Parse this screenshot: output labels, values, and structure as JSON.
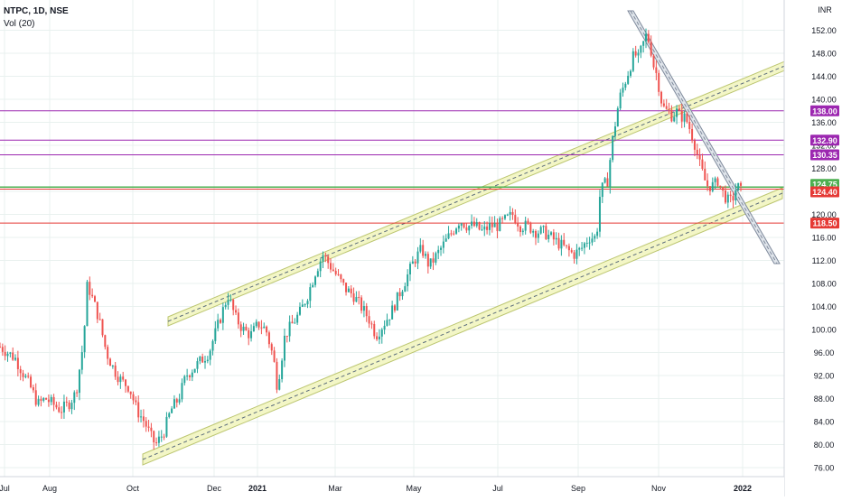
{
  "header": {
    "symbol": "NTPC, 1D, NSE",
    "indicator": "Vol (20)",
    "currency": "INR"
  },
  "chart_data": {
    "type": "candlestick",
    "x_axis": {
      "tick_labels": [
        "Jul",
        "Aug",
        "Oct",
        "Dec",
        "2021",
        "Mar",
        "May",
        "Jul",
        "Sep",
        "Nov",
        "2022"
      ]
    },
    "y_axis": {
      "position": "right",
      "ylim": [
        75,
        155
      ],
      "ticks": [
        76,
        80,
        84,
        88,
        92,
        96,
        100,
        104,
        108,
        112,
        116,
        120,
        124,
        128,
        132,
        136,
        140,
        144,
        148,
        152
      ],
      "tick_labels": [
        "76.00",
        "80.00",
        "84.00",
        "88.00",
        "92.00",
        "96.00",
        "100.00",
        "104.00",
        "108.00",
        "112.00",
        "116.00",
        "120.00",
        "124.00",
        "128.00",
        "132.00",
        "136.00",
        "140.00",
        "144.00",
        "148.00",
        "152.00"
      ]
    },
    "grid": true,
    "colors": {
      "up": "#26a69a",
      "down": "#ef5350",
      "grid": "#e9f1ef",
      "background": "#e8f5f1",
      "channel_fill": "#f3f6c3",
      "channel_line": "#b9c36a",
      "trendline": "#7f8a9c"
    },
    "horizontal_levels": [
      {
        "value": 138.0,
        "label": "138.00",
        "color": "#9c27b0"
      },
      {
        "value": 132.9,
        "label": "132.90",
        "color": "#9c27b0"
      },
      {
        "value": 130.35,
        "label": "130.35",
        "color": "#9c27b0"
      },
      {
        "value": 124.75,
        "label": "124.75",
        "color": "#4caf50"
      },
      {
        "value": 124.4,
        "label": "124.40",
        "color": "#e53935"
      },
      {
        "value": 118.5,
        "label": "118.50",
        "color": "#e53935"
      }
    ],
    "price_path": [
      [
        0,
        97
      ],
      [
        4,
        95
      ],
      [
        8,
        90
      ],
      [
        10,
        87
      ],
      [
        12,
        88
      ],
      [
        14,
        87
      ],
      [
        16,
        86
      ],
      [
        18,
        87
      ],
      [
        20,
        89
      ],
      [
        22,
        98
      ],
      [
        23,
        108
      ],
      [
        24,
        106
      ],
      [
        26,
        102
      ],
      [
        28,
        96
      ],
      [
        30,
        93
      ],
      [
        32,
        91
      ],
      [
        34,
        90
      ],
      [
        36,
        86
      ],
      [
        38,
        84
      ],
      [
        40,
        81
      ],
      [
        41,
        80
      ],
      [
        43,
        82
      ],
      [
        45,
        86
      ],
      [
        47,
        88
      ],
      [
        49,
        92
      ],
      [
        52,
        94
      ],
      [
        55,
        96
      ],
      [
        57,
        100
      ],
      [
        59,
        104
      ],
      [
        60,
        106
      ],
      [
        62,
        102
      ],
      [
        64,
        100
      ],
      [
        66,
        99
      ],
      [
        68,
        101
      ],
      [
        70,
        100
      ],
      [
        72,
        95
      ],
      [
        73,
        90
      ],
      [
        75,
        99
      ],
      [
        77,
        101
      ],
      [
        79,
        103
      ],
      [
        81,
        106
      ],
      [
        83,
        110
      ],
      [
        85,
        113
      ],
      [
        87,
        111
      ],
      [
        89,
        109
      ],
      [
        91,
        107
      ],
      [
        93,
        106
      ],
      [
        95,
        104
      ],
      [
        97,
        102
      ],
      [
        99,
        99
      ],
      [
        101,
        101
      ],
      [
        103,
        103
      ],
      [
        105,
        106
      ],
      [
        107,
        109
      ],
      [
        109,
        112
      ],
      [
        111,
        114
      ],
      [
        113,
        111
      ],
      [
        115,
        113
      ],
      [
        117,
        115
      ],
      [
        119,
        117
      ],
      [
        121,
        119
      ],
      [
        123,
        118
      ],
      [
        125,
        118
      ],
      [
        127,
        117
      ],
      [
        129,
        118
      ],
      [
        131,
        118
      ],
      [
        133,
        119
      ],
      [
        135,
        120
      ],
      [
        137,
        118
      ],
      [
        139,
        118
      ],
      [
        141,
        117
      ],
      [
        143,
        117
      ],
      [
        145,
        116
      ],
      [
        147,
        115
      ],
      [
        149,
        114
      ],
      [
        151,
        113
      ],
      [
        153,
        114
      ],
      [
        155,
        116
      ],
      [
        157,
        116
      ],
      [
        158,
        124
      ],
      [
        160,
        126
      ],
      [
        161,
        132
      ],
      [
        162,
        136
      ],
      [
        163,
        140
      ],
      [
        164,
        142
      ],
      [
        165,
        144
      ],
      [
        166,
        146
      ],
      [
        167,
        148
      ],
      [
        168,
        147
      ],
      [
        169,
        149
      ],
      [
        170,
        151
      ],
      [
        171,
        150
      ],
      [
        172,
        146
      ],
      [
        173,
        144
      ],
      [
        174,
        140
      ],
      [
        175,
        138
      ],
      [
        176,
        138
      ],
      [
        177,
        137
      ],
      [
        178,
        138
      ],
      [
        179,
        137
      ],
      [
        180,
        137
      ],
      [
        181,
        136
      ],
      [
        182,
        134
      ],
      [
        183,
        132
      ],
      [
        184,
        129
      ],
      [
        185,
        127
      ],
      [
        186,
        125
      ],
      [
        187,
        125
      ],
      [
        188,
        125
      ],
      [
        189,
        126
      ],
      [
        190,
        124
      ],
      [
        191,
        123
      ],
      [
        192,
        122
      ],
      [
        193,
        123
      ],
      [
        194,
        125
      ],
      [
        195,
        124
      ]
    ]
  }
}
